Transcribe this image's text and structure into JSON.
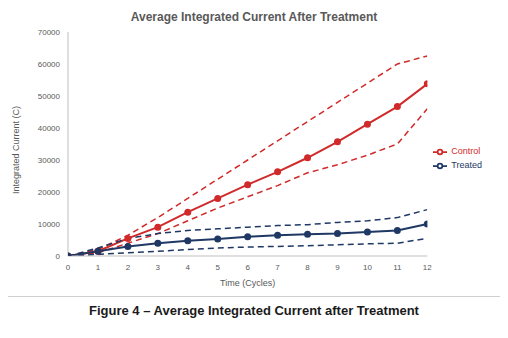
{
  "chart_data": {
    "type": "line",
    "title": "Average Integrated Current After Treatment",
    "caption": "Figure 4 – Average Integrated Current after Treatment",
    "x_label": "Time (Cycles)",
    "y_label": "Integrated Current (C)",
    "x": [
      0,
      1,
      2,
      3,
      4,
      5,
      6,
      7,
      8,
      9,
      10,
      11,
      12
    ],
    "series": [
      {
        "name": "Control",
        "color": "#d02a2a",
        "marker": "circle",
        "line_style": "solid",
        "values": [
          0,
          1500,
          5500,
          9000,
          13700,
          18000,
          22300,
          26300,
          30700,
          35700,
          41200,
          46700,
          53800
        ],
        "upper": [
          0,
          2000,
          6500,
          12000,
          18000,
          24000,
          30000,
          36000,
          42000,
          48000,
          54000,
          60000,
          62500
        ],
        "lower": [
          0,
          1000,
          4000,
          7000,
          11000,
          15000,
          18500,
          22000,
          26000,
          28500,
          31500,
          35000,
          46000
        ]
      },
      {
        "name": "Treated",
        "color": "#1f3864",
        "marker": "circle",
        "line_style": "solid",
        "values": [
          0,
          1500,
          3000,
          4000,
          4800,
          5300,
          6000,
          6500,
          6800,
          7000,
          7500,
          8000,
          10000
        ],
        "upper": [
          0,
          2500,
          5500,
          7000,
          8000,
          8500,
          9000,
          9500,
          9800,
          10500,
          11000,
          12000,
          14500
        ],
        "lower": [
          0,
          500,
          1000,
          1500,
          2000,
          2500,
          2800,
          3000,
          3200,
          3500,
          3800,
          4000,
          5500
        ]
      }
    ],
    "xlim": [
      0,
      12
    ],
    "xticks": [
      0,
      1,
      2,
      3,
      4,
      5,
      6,
      7,
      8,
      9,
      10,
      11,
      12
    ],
    "ylim": [
      0,
      70000
    ],
    "yticks": [
      0,
      10000,
      20000,
      30000,
      40000,
      50000,
      60000,
      70000
    ],
    "grid": false,
    "legend": "right"
  }
}
